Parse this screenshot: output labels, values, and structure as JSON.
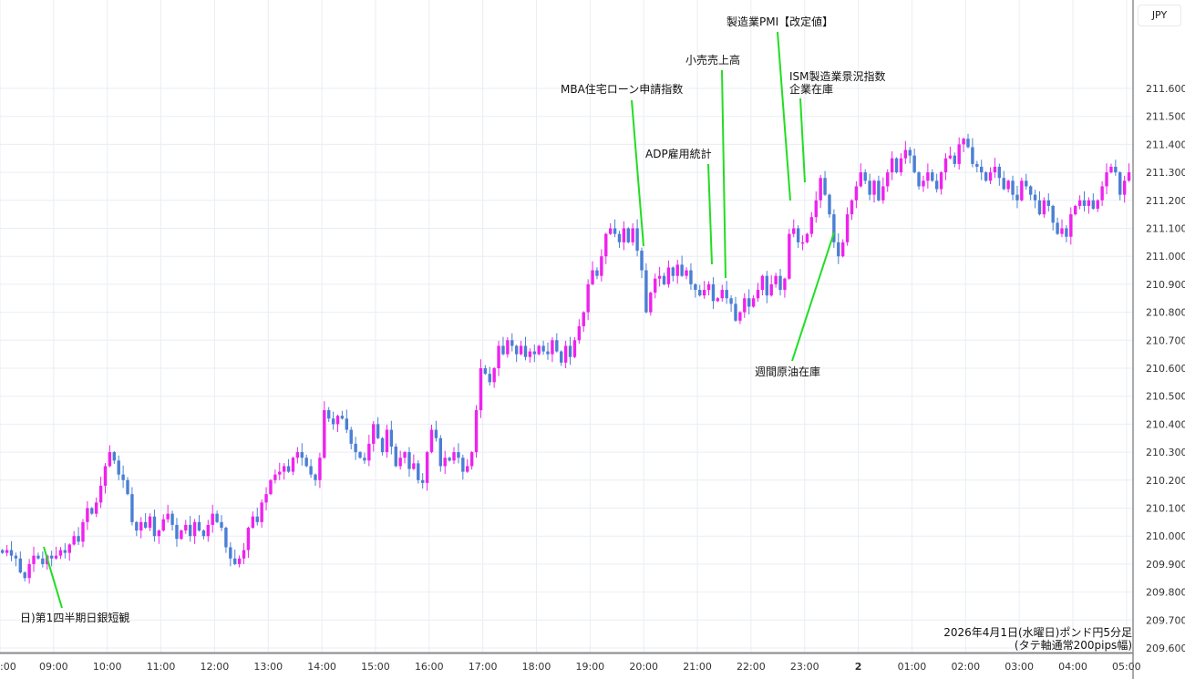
{
  "chart_data": {
    "type": "candlestick",
    "currency_label": "JPY",
    "y_ticks": [
      "211.600",
      "211.500",
      "211.400",
      "211.300",
      "211.200",
      "211.100",
      "211.000",
      "210.900",
      "210.800",
      "210.700",
      "210.600",
      "210.500",
      "210.400",
      "210.300",
      "210.200",
      "210.100",
      "210.000",
      "209.900",
      "209.800",
      "209.700",
      "209.600"
    ],
    "ylim": [
      209.6,
      211.6
    ],
    "x_ticks": [
      ":00",
      "09:00",
      "10:00",
      "11:00",
      "12:00",
      "13:00",
      "14:00",
      "15:00",
      "16:00",
      "17:00",
      "18:00",
      "19:00",
      "20:00",
      "21:00",
      "22:00",
      "23:00",
      "2",
      "01:00",
      "02:00",
      "03:00",
      "04:00",
      "05:00"
    ],
    "interval_minutes": 5,
    "start_time": "08:00",
    "start_open": 209.95,
    "closes": [
      209.94,
      209.95,
      209.93,
      209.92,
      209.87,
      209.85,
      209.9,
      209.93,
      209.92,
      209.9,
      209.93,
      209.92,
      209.93,
      209.95,
      209.94,
      209.97,
      210.0,
      209.98,
      210.05,
      210.1,
      210.08,
      210.12,
      210.18,
      210.25,
      210.3,
      210.27,
      210.22,
      210.2,
      210.15,
      210.05,
      210.02,
      210.05,
      210.03,
      210.07,
      210.0,
      210.02,
      210.06,
      210.08,
      210.04,
      209.99,
      210.02,
      210.04,
      210.0,
      210.05,
      210.02,
      210.0,
      210.04,
      210.08,
      210.05,
      210.03,
      209.96,
      209.92,
      209.9,
      209.92,
      209.95,
      210.03,
      210.07,
      210.05,
      210.12,
      210.15,
      210.2,
      210.22,
      210.23,
      210.25,
      210.23,
      210.28,
      210.3,
      210.28,
      210.25,
      210.22,
      210.2,
      210.28,
      210.45,
      210.42,
      210.4,
      210.43,
      210.42,
      210.38,
      210.33,
      210.3,
      210.28,
      210.27,
      210.33,
      210.4,
      210.35,
      210.3,
      210.38,
      210.32,
      210.25,
      210.28,
      210.3,
      210.24,
      210.26,
      210.2,
      210.19,
      210.3,
      210.38,
      210.35,
      210.25,
      210.28,
      210.27,
      210.3,
      210.28,
      210.23,
      210.25,
      210.3,
      210.45,
      210.6,
      210.58,
      210.55,
      210.6,
      210.68,
      210.65,
      210.7,
      210.68,
      210.65,
      210.68,
      210.64,
      210.66,
      210.65,
      210.68,
      210.66,
      210.65,
      210.7,
      210.66,
      210.62,
      210.68,
      210.64,
      210.7,
      210.75,
      210.8,
      210.9,
      210.95,
      210.93,
      211.0,
      211.08,
      211.1,
      211.08,
      211.05,
      211.1,
      211.05,
      211.1,
      211.02,
      210.95,
      210.8,
      210.87,
      210.92,
      210.93,
      210.9,
      210.96,
      210.93,
      210.97,
      210.93,
      210.95,
      210.9,
      210.88,
      210.86,
      210.88,
      210.9,
      210.84,
      210.85,
      210.88,
      210.85,
      210.83,
      210.77,
      210.8,
      210.85,
      210.82,
      210.85,
      210.88,
      210.93,
      210.86,
      210.9,
      210.93,
      210.88,
      210.92,
      211.08,
      211.1,
      211.05,
      211.05,
      211.08,
      211.14,
      211.2,
      211.28,
      211.22,
      211.15,
      211.05,
      211.0,
      211.05,
      211.15,
      211.2,
      211.25,
      211.3,
      211.27,
      211.22,
      211.27,
      211.2,
      211.25,
      211.3,
      211.35,
      211.3,
      211.35,
      211.38,
      211.36,
      211.3,
      211.25,
      211.27,
      211.3,
      211.27,
      211.24,
      211.3,
      211.35,
      211.36,
      211.33,
      211.4,
      211.42,
      211.39,
      211.33,
      211.32,
      211.3,
      211.27,
      211.3,
      211.32,
      211.28,
      211.24,
      211.27,
      211.22,
      211.2,
      211.27,
      211.25,
      211.22,
      211.2,
      211.15,
      211.2,
      211.18,
      211.12,
      211.08,
      211.1,
      211.07,
      211.15,
      211.18,
      211.2,
      211.18,
      211.2,
      211.17,
      211.2,
      211.25,
      211.3,
      211.32,
      211.3,
      211.22,
      211.27,
      211.3
    ],
    "colors": {
      "up": "#ee22ee",
      "down": "#4a7fd4",
      "annotation_line": "#22dd22",
      "grid": "#e9eef3"
    },
    "grid": true,
    "annotations": [
      {
        "label": "日)第1四半期日銀短観",
        "time": "08:50"
      },
      {
        "label": "MBA住宅ローン申請指数",
        "time": "20:00"
      },
      {
        "label": "ADP雇用統計",
        "time": "21:15"
      },
      {
        "label": "小売売上高",
        "time": "21:30"
      },
      {
        "label": "製造業PMI【改定値】",
        "time": "22:45"
      },
      {
        "label": "ISM製造業景況指数",
        "label2": "企業在庫",
        "time": "23:00"
      },
      {
        "label": "週間原油在庫",
        "time": "23:30"
      }
    ],
    "note_line1": "2026年4月1日(水曜日)ポンド円5分足",
    "note_line2": "(タテ軸通常200pips幅)"
  }
}
